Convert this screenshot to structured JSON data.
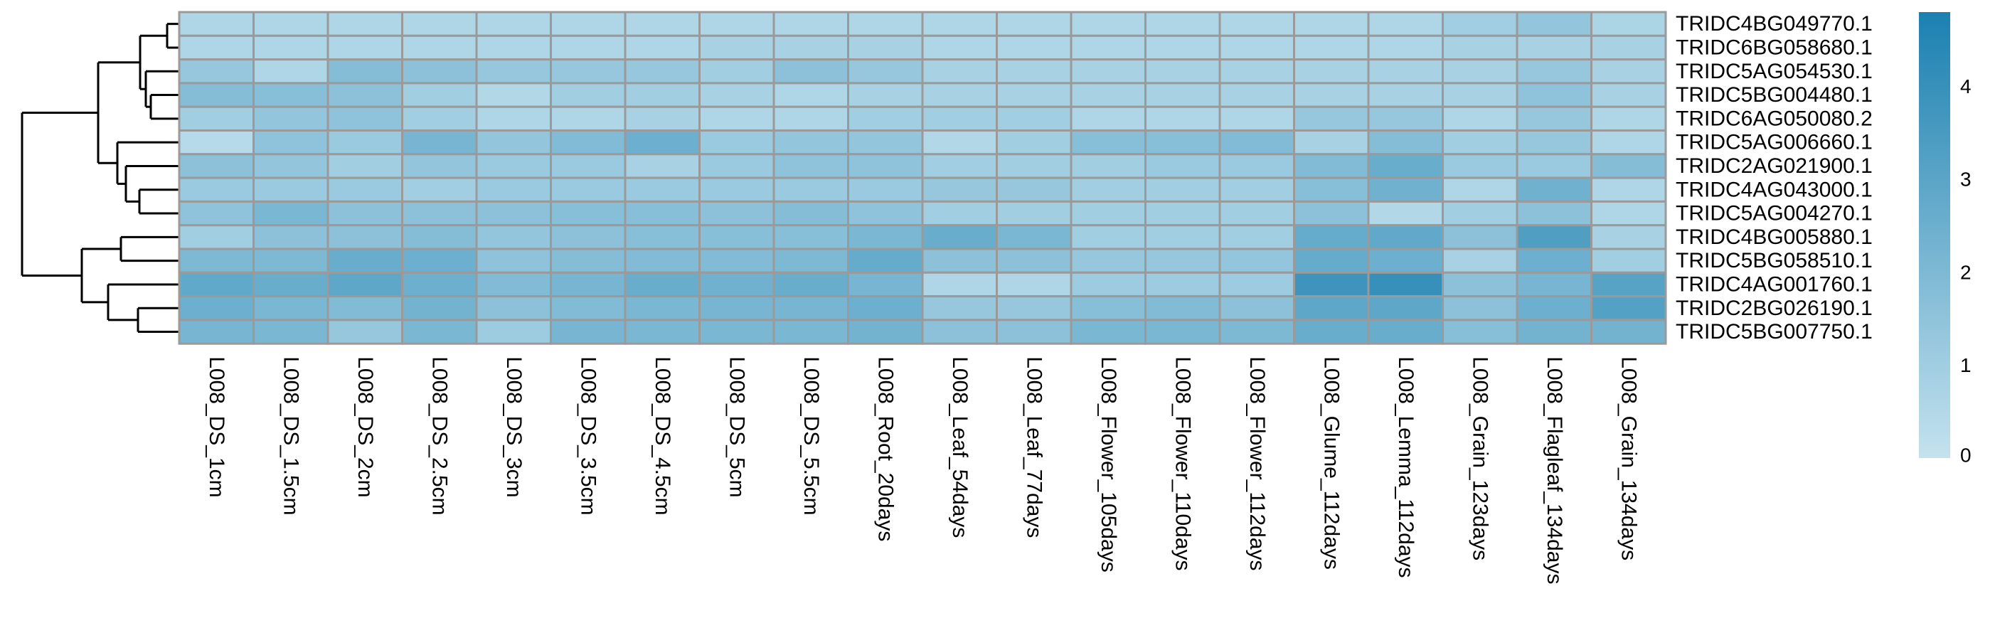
{
  "chart_data": {
    "type": "heatmap",
    "title": "",
    "xlabel": "",
    "ylabel": "",
    "columns": [
      "L008_DS_1cm",
      "L008_DS_1.5cm",
      "L008_DS_2cm",
      "L008_DS_2.5cm",
      "L008_DS_3cm",
      "L008_DS_3.5cm",
      "L008_DS_4.5cm",
      "L008_DS_5cm",
      "L008_DS_5.5cm",
      "L008_Root_20days",
      "L008_Leaf_54days",
      "L008_Leaf_77days",
      "L008_Flower_105days",
      "L008_Flower_110days",
      "L008_Flower_112days",
      "L008_Glume_112days",
      "L008_Lemma_112days",
      "L008_Grain_123days",
      "L008_Flagleaf_134days",
      "L008_Grain_134days"
    ],
    "rows": [
      "TRIDC4BG049770.1",
      "TRIDC6BG058680.1",
      "TRIDC5AG054530.1",
      "TRIDC5BG004480.1",
      "TRIDC6AG050080.2",
      "TRIDC5AG006660.1",
      "TRIDC2AG021900.1",
      "TRIDC4AG043000.1",
      "TRIDC5AG004270.1",
      "TRIDC4BG005880.1",
      "TRIDC5BG058510.1",
      "TRIDC4AG001760.1",
      "TRIDC2BG026190.1",
      "TRIDC5BG007750.1"
    ],
    "values": [
      [
        0.6,
        0.6,
        0.6,
        0.6,
        0.6,
        0.6,
        0.6,
        0.6,
        0.6,
        0.6,
        0.6,
        0.6,
        0.6,
        0.6,
        0.6,
        0.6,
        0.6,
        1.0,
        1.4,
        0.7
      ],
      [
        0.6,
        0.6,
        0.6,
        0.6,
        0.6,
        0.6,
        0.6,
        0.8,
        0.8,
        0.8,
        0.6,
        0.6,
        0.6,
        0.6,
        0.6,
        0.6,
        0.6,
        0.8,
        0.8,
        0.8
      ],
      [
        1.3,
        0.6,
        1.8,
        1.6,
        1.3,
        1.3,
        1.3,
        1.0,
        1.6,
        1.3,
        0.8,
        0.8,
        0.8,
        0.8,
        0.8,
        0.8,
        0.8,
        0.8,
        1.3,
        0.8
      ],
      [
        1.8,
        1.7,
        1.6,
        1.0,
        0.5,
        1.0,
        1.0,
        0.8,
        0.6,
        0.8,
        0.8,
        0.8,
        0.8,
        0.8,
        0.8,
        0.8,
        0.8,
        0.8,
        1.5,
        0.8
      ],
      [
        1.0,
        1.4,
        1.5,
        1.0,
        0.6,
        0.6,
        0.8,
        0.6,
        0.6,
        1.0,
        1.0,
        1.0,
        0.6,
        0.6,
        0.6,
        1.3,
        1.3,
        0.6,
        1.3,
        0.6
      ],
      [
        0.4,
        1.5,
        1.2,
        2.2,
        1.4,
        1.9,
        2.5,
        1.2,
        1.4,
        1.4,
        0.5,
        1.0,
        1.7,
        1.7,
        1.9,
        0.8,
        1.8,
        1.0,
        1.3,
        0.6
      ],
      [
        1.6,
        1.4,
        1.0,
        1.4,
        1.2,
        1.2,
        0.8,
        1.2,
        1.5,
        1.5,
        1.0,
        1.0,
        1.0,
        1.2,
        1.2,
        1.9,
        2.6,
        1.2,
        1.2,
        1.8
      ],
      [
        1.2,
        1.2,
        1.2,
        1.0,
        1.2,
        1.2,
        1.2,
        1.2,
        1.2,
        1.2,
        1.3,
        1.3,
        1.0,
        1.0,
        1.0,
        1.7,
        2.4,
        0.6,
        2.4,
        0.6
      ],
      [
        1.5,
        2.1,
        1.6,
        1.6,
        1.6,
        1.7,
        1.7,
        1.6,
        1.8,
        1.5,
        1.0,
        1.0,
        1.0,
        1.0,
        1.0,
        1.6,
        0.5,
        1.0,
        1.6,
        0.6
      ],
      [
        1.0,
        1.6,
        1.6,
        1.8,
        1.4,
        1.6,
        1.7,
        1.7,
        1.7,
        2.1,
        2.6,
        2.1,
        1.0,
        1.0,
        1.0,
        2.7,
        2.8,
        1.6,
        3.3,
        0.8
      ],
      [
        2.0,
        2.0,
        2.6,
        2.5,
        1.5,
        1.8,
        1.9,
        1.9,
        2.0,
        2.7,
        1.6,
        1.6,
        1.3,
        1.3,
        1.4,
        2.7,
        2.5,
        0.8,
        2.5,
        1.0
      ],
      [
        2.8,
        2.6,
        2.9,
        2.5,
        1.9,
        2.2,
        2.6,
        2.4,
        2.6,
        2.2,
        0.6,
        0.6,
        1.1,
        1.1,
        1.1,
        3.8,
        4.0,
        1.6,
        2.2,
        3.1
      ],
      [
        2.5,
        2.1,
        1.9,
        2.3,
        1.6,
        1.9,
        2.1,
        2.2,
        2.2,
        2.5,
        1.3,
        1.3,
        1.7,
        1.9,
        1.6,
        2.9,
        2.9,
        1.6,
        2.5,
        3.2
      ],
      [
        2.2,
        2.1,
        1.3,
        2.1,
        1.1,
        2.2,
        2.1,
        2.1,
        2.1,
        2.3,
        1.6,
        1.6,
        2.1,
        2.1,
        2.0,
        2.6,
        2.6,
        1.7,
        2.3,
        2.3
      ]
    ],
    "color_scale": {
      "min": 0,
      "max": 4.8,
      "low": "#c4e2ee",
      "high": "#1b80b0",
      "ticks": [
        0,
        1,
        2,
        3,
        4
      ]
    },
    "legend_tick_labels": [
      "0",
      "1",
      "2",
      "3",
      "4"
    ],
    "cell_border_color": "#9a9a9a",
    "row_dendrogram": true,
    "legend_position": "right"
  }
}
